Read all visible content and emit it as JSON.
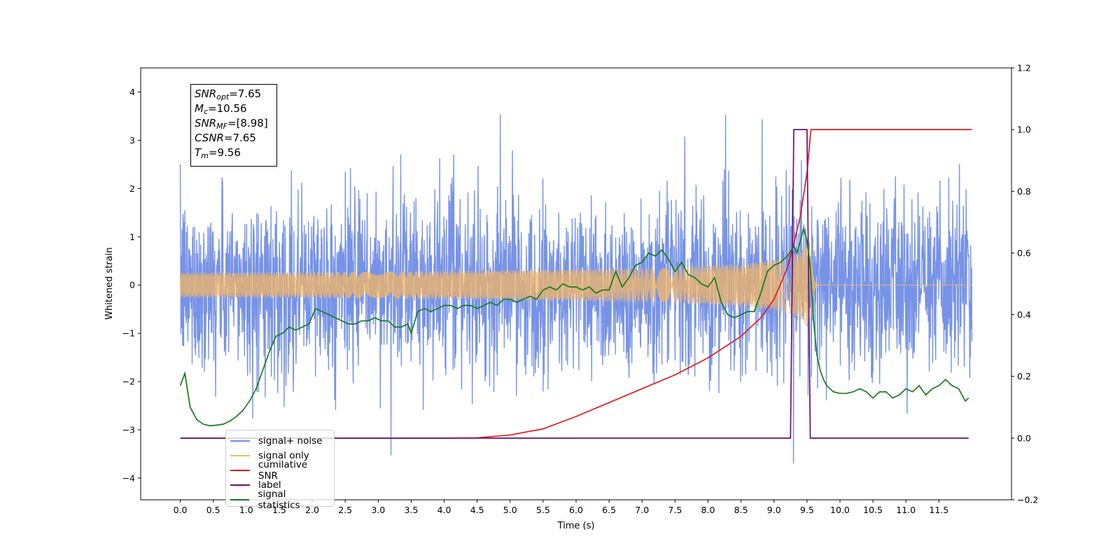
{
  "chart_data": {
    "type": "line",
    "title": "",
    "xlabel": "Time (s)",
    "ylabel": "Whitened strain",
    "xlim": [
      -0.6,
      12.6
    ],
    "ylim": [
      -4.45,
      4.5
    ],
    "y2lim": [
      -0.2,
      1.2
    ],
    "xticks": [
      "0.0",
      "0.5",
      "1.0",
      "1.5",
      "2.0",
      "2.5",
      "3.0",
      "3.5",
      "4.0",
      "4.5",
      "5.0",
      "5.5",
      "6.0",
      "6.5",
      "7.0",
      "7.5",
      "8.0",
      "8.5",
      "9.0",
      "9.5",
      "10.0",
      "10.5",
      "11.0",
      "11.5"
    ],
    "yticks": [
      -4,
      -3,
      -2,
      -1,
      0,
      1,
      2,
      3,
      4
    ],
    "y2ticks": [
      "−0.2",
      "0.0",
      "0.2",
      "0.4",
      "0.6",
      "0.8",
      "1.0",
      "1.2"
    ],
    "legend_position": "lower-left",
    "series": [
      {
        "name": "signal+ noise",
        "axis": "left",
        "color": "#6b8ae5",
        "kind": "noise",
        "x_range": [
          0.0,
          12.0
        ],
        "envelope_sigma": 0.9
      },
      {
        "name": "signal only",
        "axis": "left",
        "color": "#f3b665",
        "kind": "chirp",
        "x_range": [
          0.0,
          12.0
        ],
        "merger_time": 9.56,
        "peak_amplitude": 1.0
      },
      {
        "name": "cumilative SNR",
        "axis": "right",
        "color": "#e31a1c",
        "x": [
          0,
          1,
          2,
          3,
          4,
          4.5,
          5,
          5.5,
          6,
          6.5,
          7,
          7.5,
          8,
          8.5,
          8.8,
          9.0,
          9.2,
          9.3,
          9.4,
          9.5,
          9.56,
          9.6,
          12.0
        ],
        "y": [
          0,
          0,
          0,
          0,
          0,
          0.001,
          0.01,
          0.03,
          0.07,
          0.115,
          0.16,
          0.205,
          0.26,
          0.33,
          0.39,
          0.45,
          0.55,
          0.63,
          0.72,
          0.86,
          1.0,
          1.0,
          1.0
        ]
      },
      {
        "name": "label",
        "axis": "right",
        "color": "#6a0f70",
        "x": [
          0,
          9.25,
          9.3,
          9.5,
          9.55,
          11.95
        ],
        "y": [
          0,
          0,
          1,
          1,
          0,
          0
        ]
      },
      {
        "name": "signal statistics",
        "axis": "right",
        "color": "#1a7a1a",
        "x": [
          0,
          0.07,
          0.15,
          0.25,
          0.35,
          0.45,
          0.55,
          0.65,
          0.75,
          0.85,
          0.95,
          1.05,
          1.15,
          1.25,
          1.35,
          1.45,
          1.55,
          1.65,
          1.75,
          1.85,
          1.95,
          2.05,
          2.15,
          2.25,
          2.35,
          2.45,
          2.55,
          2.65,
          2.75,
          2.85,
          2.95,
          3.05,
          3.15,
          3.25,
          3.35,
          3.45,
          3.5,
          3.6,
          3.7,
          3.8,
          3.9,
          4.0,
          4.1,
          4.2,
          4.3,
          4.4,
          4.5,
          4.6,
          4.7,
          4.8,
          4.9,
          5.0,
          5.1,
          5.2,
          5.3,
          5.4,
          5.5,
          5.6,
          5.7,
          5.8,
          5.9,
          6.0,
          6.1,
          6.2,
          6.3,
          6.4,
          6.5,
          6.6,
          6.7,
          6.8,
          6.9,
          7.0,
          7.1,
          7.2,
          7.3,
          7.4,
          7.5,
          7.6,
          7.7,
          7.8,
          7.9,
          8.0,
          8.1,
          8.2,
          8.3,
          8.4,
          8.5,
          8.6,
          8.7,
          8.8,
          8.9,
          9.0,
          9.1,
          9.2,
          9.3,
          9.35,
          9.45,
          9.5,
          9.55,
          9.6,
          9.65,
          9.7,
          9.75,
          9.8,
          9.9,
          10.0,
          10.1,
          10.2,
          10.3,
          10.4,
          10.5,
          10.6,
          10.7,
          10.8,
          10.9,
          11.0,
          11.1,
          11.2,
          11.3,
          11.4,
          11.5,
          11.6,
          11.7,
          11.8,
          11.9,
          11.95
        ],
        "y": [
          0.17,
          0.21,
          0.1,
          0.06,
          0.045,
          0.04,
          0.042,
          0.045,
          0.055,
          0.07,
          0.09,
          0.12,
          0.16,
          0.22,
          0.28,
          0.33,
          0.34,
          0.36,
          0.35,
          0.36,
          0.37,
          0.42,
          0.41,
          0.4,
          0.39,
          0.38,
          0.37,
          0.37,
          0.38,
          0.38,
          0.39,
          0.38,
          0.38,
          0.36,
          0.36,
          0.37,
          0.34,
          0.41,
          0.42,
          0.41,
          0.42,
          0.43,
          0.43,
          0.42,
          0.43,
          0.43,
          0.42,
          0.43,
          0.44,
          0.43,
          0.45,
          0.45,
          0.44,
          0.45,
          0.46,
          0.45,
          0.48,
          0.49,
          0.48,
          0.5,
          0.49,
          0.49,
          0.48,
          0.49,
          0.47,
          0.48,
          0.48,
          0.54,
          0.49,
          0.52,
          0.56,
          0.57,
          0.6,
          0.59,
          0.61,
          0.58,
          0.54,
          0.57,
          0.53,
          0.52,
          0.5,
          0.49,
          0.52,
          0.44,
          0.4,
          0.39,
          0.4,
          0.41,
          0.41,
          0.47,
          0.54,
          0.56,
          0.57,
          0.59,
          0.62,
          0.6,
          0.68,
          0.64,
          0.55,
          0.38,
          0.27,
          0.22,
          0.19,
          0.17,
          0.15,
          0.145,
          0.145,
          0.15,
          0.16,
          0.15,
          0.13,
          0.15,
          0.15,
          0.13,
          0.14,
          0.16,
          0.15,
          0.17,
          0.14,
          0.16,
          0.17,
          0.19,
          0.17,
          0.16,
          0.12,
          0.13
        ]
      }
    ]
  },
  "annotation": {
    "lines": [
      {
        "var": "SNR",
        "sub": "opt",
        "value": "=7.65"
      },
      {
        "var": "M",
        "sub": "c",
        "value": "=10.56"
      },
      {
        "var": "SNR",
        "sub": "MF",
        "value": "=[8.98]"
      },
      {
        "var": "CSNR",
        "sub": "",
        "value": "=7.65"
      },
      {
        "var": "T",
        "sub": "m",
        "value": "=9.56"
      }
    ]
  },
  "legend": {
    "items": [
      {
        "label": "signal+ noise",
        "color": "#6b8ae5"
      },
      {
        "label": "signal only",
        "color": "#f3b665"
      },
      {
        "label": "cumilative SNR",
        "color": "#e31a1c"
      },
      {
        "label": "label",
        "color": "#6a0f70"
      },
      {
        "label": "signal statistics",
        "color": "#1a7a1a"
      }
    ]
  }
}
